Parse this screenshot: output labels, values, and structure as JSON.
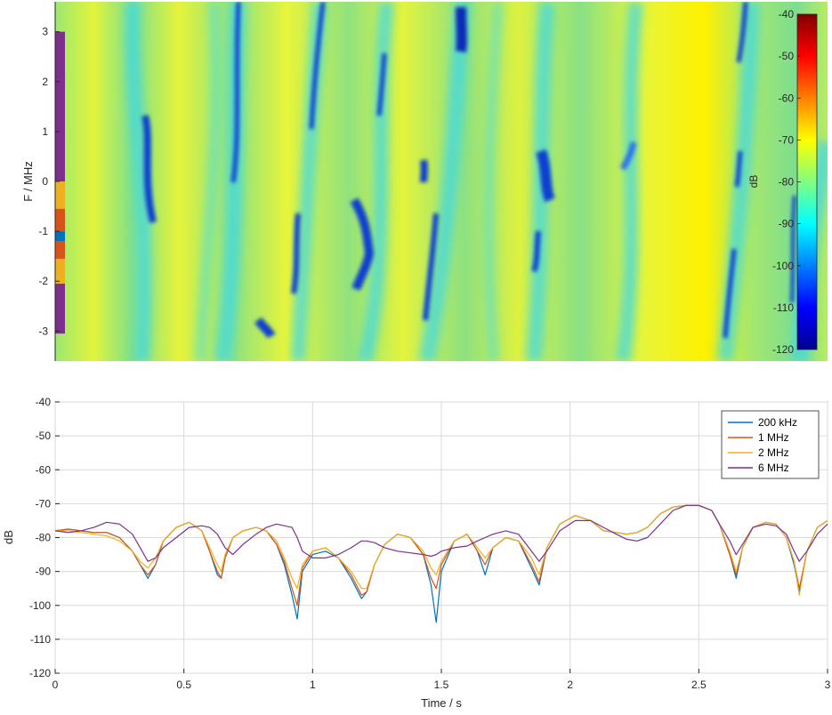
{
  "chart_data": [
    {
      "type": "heatmap",
      "ylabel": "F / MHz",
      "xlim": [
        0,
        3
      ],
      "ylim": [
        -3.6,
        3.6
      ],
      "yticks": [
        3,
        2,
        1,
        0,
        -1,
        -2,
        -3
      ],
      "colorbar": {
        "label": "dB",
        "range": [
          -120,
          -40
        ],
        "ticks": [
          -40,
          -50,
          -60,
          -70,
          -80,
          -90,
          -100,
          -110,
          -120
        ]
      },
      "band_strip": [
        {
          "from": 3.0,
          "to": 0.0,
          "color": "#7E2F8E"
        },
        {
          "from": 0.0,
          "to": -0.55,
          "color": "#EDB120"
        },
        {
          "from": -0.55,
          "to": -1.0,
          "color": "#D95319"
        },
        {
          "from": -1.0,
          "to": -1.2,
          "color": "#0072BD"
        },
        {
          "from": -1.2,
          "to": -1.55,
          "color": "#D95319"
        },
        {
          "from": -1.55,
          "to": -2.05,
          "color": "#EDB120"
        },
        {
          "from": -2.05,
          "to": -3.05,
          "color": "#7E2F8E"
        }
      ]
    },
    {
      "type": "line",
      "xlabel": "Time / s",
      "ylabel": "dB",
      "xlim": [
        0,
        3
      ],
      "ylim": [
        -120,
        -40
      ],
      "xticks": [
        0,
        0.5,
        1,
        1.5,
        2,
        2.5,
        3
      ],
      "yticks": [
        -40,
        -50,
        -60,
        -70,
        -80,
        -90,
        -100,
        -110,
        -120
      ],
      "xticklabels": [
        "0",
        "0.5",
        "1",
        "1.5",
        "2",
        "2.5",
        "3"
      ],
      "grid": true,
      "legend_position": "top-right",
      "x": [
        0,
        0.05,
        0.1,
        0.15,
        0.2,
        0.25,
        0.3,
        0.33,
        0.36,
        0.39,
        0.42,
        0.47,
        0.52,
        0.57,
        0.6,
        0.63,
        0.645,
        0.66,
        0.69,
        0.73,
        0.78,
        0.82,
        0.86,
        0.89,
        0.92,
        0.94,
        0.96,
        1.0,
        1.05,
        1.1,
        1.15,
        1.19,
        1.21,
        1.24,
        1.28,
        1.33,
        1.38,
        1.43,
        1.46,
        1.48,
        1.5,
        1.55,
        1.6,
        1.64,
        1.67,
        1.7,
        1.75,
        1.8,
        1.85,
        1.88,
        1.91,
        1.96,
        2.02,
        2.08,
        2.13,
        2.18,
        2.22,
        2.26,
        2.3,
        2.35,
        2.4,
        2.45,
        2.5,
        2.55,
        2.58,
        2.62,
        2.645,
        2.67,
        2.71,
        2.76,
        2.8,
        2.84,
        2.87,
        2.89,
        2.92,
        2.96,
        3.0
      ],
      "series": [
        {
          "name": "200 kHz",
          "color": "#0072BD",
          "values": [
            -78,
            -77.5,
            -78,
            -78.5,
            -78.5,
            -80,
            -84,
            -88,
            -92,
            -88,
            -81,
            -77,
            -75.5,
            -78,
            -84,
            -91,
            -92,
            -86,
            -80,
            -78,
            -77,
            -78,
            -82,
            -88,
            -97,
            -104,
            -90,
            -85,
            -84,
            -86,
            -92,
            -98,
            -96,
            -88,
            -82,
            -79,
            -80,
            -85,
            -94,
            -105,
            -90,
            -81,
            -79,
            -84,
            -91,
            -83,
            -80,
            -81,
            -89,
            -94,
            -83,
            -76,
            -73.5,
            -75,
            -78,
            -78.5,
            -79,
            -78.5,
            -77,
            -73,
            -71,
            -70.5,
            -70.5,
            -72,
            -76,
            -85,
            -92,
            -83,
            -77,
            -75.5,
            -76,
            -80,
            -88,
            -96,
            -84,
            -77,
            -75
          ]
        },
        {
          "name": "1 MHz",
          "color": "#D95319",
          "values": [
            -78,
            -77.5,
            -78,
            -78.5,
            -78.5,
            -80,
            -84,
            -88,
            -91,
            -88,
            -81,
            -77,
            -75.5,
            -78,
            -84,
            -90,
            -92,
            -86,
            -80,
            -78,
            -77,
            -78,
            -82,
            -87,
            -95,
            -100,
            -89,
            -84,
            -83,
            -86,
            -91,
            -97,
            -96,
            -88,
            -82,
            -79,
            -80,
            -85,
            -92,
            -95,
            -88,
            -81,
            -79,
            -84,
            -88,
            -83,
            -80,
            -81,
            -88,
            -93,
            -83,
            -76,
            -73.5,
            -75,
            -78,
            -78.5,
            -79,
            -78.5,
            -77,
            -73,
            -71,
            -70.5,
            -70.5,
            -72,
            -76,
            -85,
            -91,
            -83,
            -77,
            -75.5,
            -76,
            -80,
            -87,
            -95,
            -84,
            -77,
            -75
          ]
        },
        {
          "name": "2 MHz",
          "color": "#EDB120",
          "values": [
            -78,
            -78,
            -78.5,
            -79,
            -79.5,
            -81,
            -84,
            -87,
            -89,
            -86,
            -81,
            -77,
            -75.5,
            -78,
            -83,
            -88,
            -90,
            -85,
            -80,
            -78,
            -77,
            -78,
            -81,
            -86,
            -92,
            -95,
            -88,
            -84,
            -83,
            -86,
            -90,
            -95,
            -95,
            -88,
            -82,
            -79,
            -80,
            -84,
            -89,
            -91,
            -87,
            -81,
            -79,
            -83,
            -86,
            -83,
            -80,
            -81,
            -86,
            -91,
            -83,
            -76,
            -73.5,
            -75,
            -78,
            -78.5,
            -79,
            -78.5,
            -77,
            -73,
            -71,
            -70.5,
            -70.5,
            -72,
            -76,
            -84,
            -90,
            -83,
            -77,
            -75.5,
            -76,
            -80,
            -87,
            -97,
            -84,
            -77,
            -75
          ]
        },
        {
          "name": "6 MHz",
          "color": "#7E2F8E",
          "values": [
            -78,
            -78.5,
            -78,
            -77,
            -75.5,
            -76,
            -79,
            -83,
            -87,
            -86,
            -83,
            -80,
            -77,
            -76.5,
            -77,
            -79,
            -81,
            -83,
            -85,
            -82,
            -79,
            -77,
            -76,
            -76.5,
            -77,
            -80,
            -84,
            -86,
            -86,
            -85,
            -83,
            -81,
            -81,
            -81.5,
            -83,
            -84,
            -84.5,
            -85,
            -85.5,
            -85,
            -84,
            -83,
            -82.5,
            -81,
            -80,
            -79,
            -78,
            -79,
            -84,
            -87,
            -84,
            -78,
            -75,
            -75,
            -77,
            -79,
            -80.5,
            -81,
            -80,
            -76,
            -72,
            -70.5,
            -70.5,
            -72,
            -76,
            -81,
            -85,
            -82,
            -77,
            -76,
            -76.5,
            -79,
            -84,
            -87,
            -84,
            -79,
            -76
          ]
        }
      ]
    }
  ]
}
